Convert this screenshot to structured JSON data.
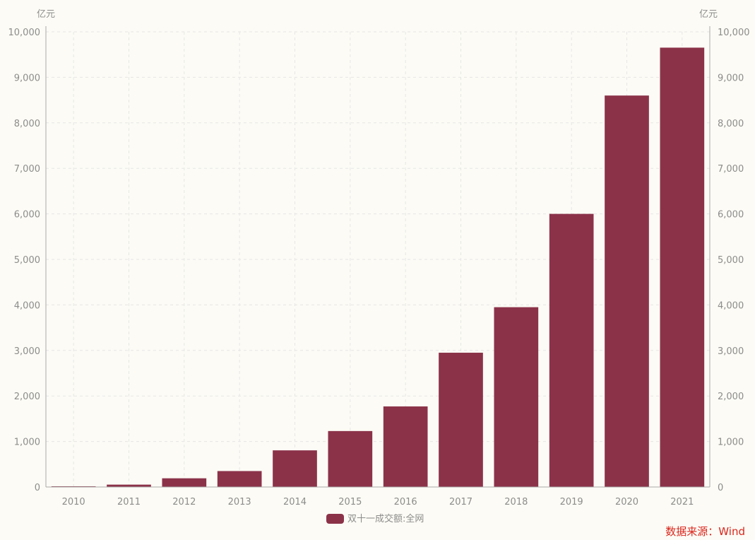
{
  "chart_data": {
    "type": "bar",
    "categories": [
      "2010",
      "2011",
      "2012",
      "2013",
      "2014",
      "2015",
      "2016",
      "2017",
      "2018",
      "2019",
      "2020",
      "2021"
    ],
    "series": [
      {
        "name": "双十一成交额:全网",
        "values": [
          9.36,
          52,
          191,
          350,
          805,
          1229,
          1770,
          2950,
          3950,
          6000,
          8600,
          9652
        ]
      }
    ],
    "ylim": [
      0,
      10000
    ],
    "yticks": [
      0,
      1000,
      2000,
      3000,
      4000,
      5000,
      6000,
      7000,
      8000,
      9000,
      10000
    ],
    "ytick_labels": [
      "0",
      "1,000",
      "2,000",
      "3,000",
      "4,000",
      "5,000",
      "6,000",
      "7,000",
      "8,000",
      "9,000",
      "10,000"
    ],
    "y_unit_left": "亿元",
    "y_unit_right": "亿元",
    "source": "数据来源：Wind",
    "grid": true,
    "legend_position": "bottom-center",
    "colors": {
      "bar": "#8b3249",
      "background": "#fcfbf5",
      "grid": "#e6e6e6",
      "axis": "#aaaaaa",
      "text": "#8c8c8c",
      "source": "#d9261c"
    }
  }
}
